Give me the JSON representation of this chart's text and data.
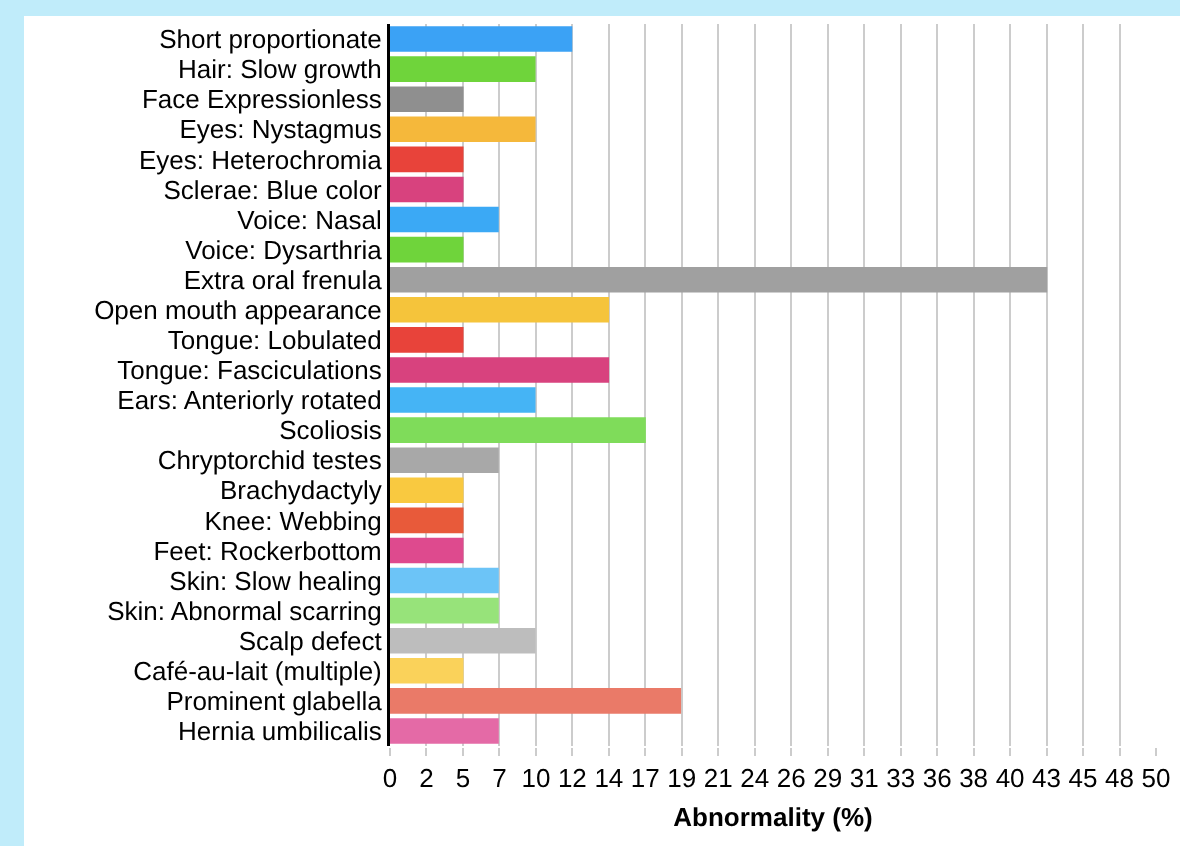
{
  "chart_data": {
    "type": "bar",
    "orientation": "horizontal",
    "xlabel": "Abnormality (%)",
    "categories": [
      "Short proportionate",
      "Hair: Slow growth",
      "Face Expressionless",
      "Eyes: Nystagmus",
      "Eyes: Heterochromia",
      "Sclerae: Blue color",
      "Voice: Nasal",
      "Voice: Dysarthria",
      "Extra oral frenula",
      "Open mouth appearance",
      "Tongue: Lobulated",
      "Tongue: Fasciculations",
      "Ears: Anteriorly rotated",
      "Scoliosis",
      "Chryptorchid testes",
      "Brachydactyly",
      "Knee: Webbing",
      "Feet: Rockerbottom",
      "Skin: Slow healing",
      "Skin: Abnormal scarring",
      "Scalp defect",
      "Café-au-lait (multiple)",
      "Prominent glabella",
      "Hernia umbilicalis"
    ],
    "values": [
      11.9,
      9.5,
      4.8,
      9.5,
      4.8,
      4.8,
      7.1,
      4.8,
      42.9,
      14.3,
      4.8,
      14.3,
      9.5,
      16.7,
      7.1,
      4.8,
      4.8,
      4.8,
      7.1,
      7.1,
      9.5,
      4.8,
      19.0,
      7.1
    ],
    "colors": [
      "#3ba2f5",
      "#6fd43b",
      "#8f8f8f",
      "#f5b83b",
      "#e8433a",
      "#d8427e",
      "#3ba9f5",
      "#6fd43b",
      "#a0a0a0",
      "#f5c43b",
      "#e8433a",
      "#d8427e",
      "#45b4f5",
      "#7fdc5a",
      "#a8a8a8",
      "#f9c940",
      "#e85a3a",
      "#de4a8e",
      "#6cc4f7",
      "#97e37a",
      "#bdbdbd",
      "#fad25a",
      "#ea7a68",
      "#e46aa6"
    ],
    "xlim": [
      0,
      50
    ],
    "xticks": [
      0,
      {
        "value": 2.381,
        "label": "2"
      },
      {
        "value": 4.762,
        "label": "5"
      },
      {
        "value": 7.143,
        "label": "7"
      },
      {
        "value": 9.524,
        "label": "10"
      },
      {
        "value": 11.905,
        "label": "12"
      },
      {
        "value": 14.286,
        "label": "14"
      },
      {
        "value": 16.667,
        "label": "17"
      },
      {
        "value": 19.048,
        "label": "19"
      },
      {
        "value": 21.429,
        "label": "21"
      },
      {
        "value": 23.81,
        "label": "24"
      },
      {
        "value": 26.19,
        "label": "26"
      },
      {
        "value": 28.571,
        "label": "29"
      },
      {
        "value": 30.952,
        "label": "31"
      },
      {
        "value": 33.333,
        "label": "33"
      },
      {
        "value": 35.714,
        "label": "36"
      },
      {
        "value": 38.095,
        "label": "38"
      },
      {
        "value": 40.476,
        "label": "40"
      },
      {
        "value": 42.857,
        "label": "43"
      },
      {
        "value": 45.238,
        "label": "45"
      },
      {
        "value": 47.619,
        "label": "48"
      },
      50
    ],
    "grid": "x"
  }
}
